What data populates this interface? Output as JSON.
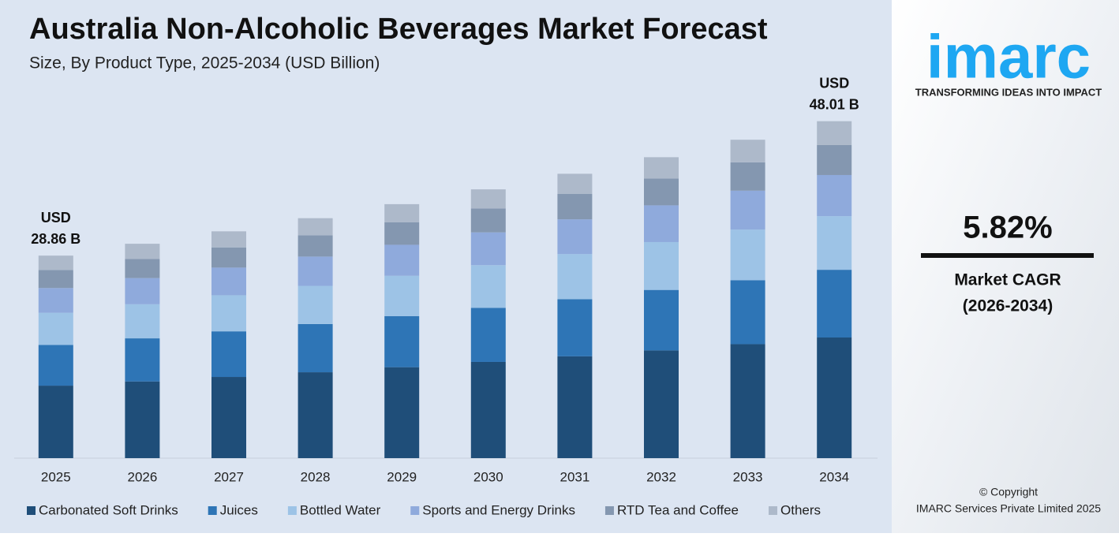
{
  "chart_data": {
    "type": "stacked_bar",
    "title": "Australia Non-Alcoholic Beverages Market Forecast",
    "subtitle": "Size, By Product Type, 2025-2034 (USD Billion)",
    "categories": [
      "2025",
      "2026",
      "2027",
      "2028",
      "2029",
      "2030",
      "2031",
      "2032",
      "2033",
      "2034"
    ],
    "series": [
      {
        "name": "Carbonated Soft Drinks",
        "color": "#1f4e79",
        "values": [
          10.33,
          10.93,
          11.57,
          12.24,
          12.96,
          13.71,
          14.51,
          15.35,
          16.24,
          17.19
        ]
      },
      {
        "name": "Juices",
        "color": "#2e75b6",
        "values": [
          5.8,
          6.14,
          6.5,
          6.87,
          7.27,
          7.7,
          8.14,
          8.62,
          9.12,
          9.65
        ]
      },
      {
        "name": "Bottled Water",
        "color": "#9dc3e6",
        "values": [
          4.59,
          4.86,
          5.14,
          5.44,
          5.75,
          6.09,
          6.44,
          6.82,
          7.21,
          7.64
        ]
      },
      {
        "name": "Sports and Energy Drinks",
        "color": "#8faadc",
        "values": [
          3.52,
          3.73,
          3.94,
          4.17,
          4.42,
          4.67,
          4.94,
          5.23,
          5.54,
          5.86
        ]
      },
      {
        "name": "RTD Tea and Coffee",
        "color": "#8497b0",
        "values": [
          2.57,
          2.72,
          2.88,
          3.04,
          3.22,
          3.41,
          3.61,
          3.82,
          4.04,
          4.27
        ]
      },
      {
        "name": "Others",
        "color": "#adb9ca",
        "values": [
          2.05,
          2.17,
          2.29,
          2.43,
          2.57,
          2.72,
          2.88,
          3.04,
          3.22,
          3.4
        ]
      }
    ],
    "ylim": [
      0,
      50
    ],
    "annotations": [
      {
        "category": 0,
        "lines": [
          "USD",
          "28.86 B"
        ]
      },
      {
        "category": 9,
        "lines": [
          "USD",
          "48.01 B"
        ]
      }
    ]
  },
  "sidebar": {
    "logo": "imarc",
    "tagline": "TRANSFORMING IDEAS INTO IMPACT",
    "cagr": "5.82%",
    "cagr_label": "Market CAGR",
    "cagr_period": "(2026-2034)",
    "copyright": "© Copyright",
    "company": "IMARC Services Private Limited 2025"
  }
}
